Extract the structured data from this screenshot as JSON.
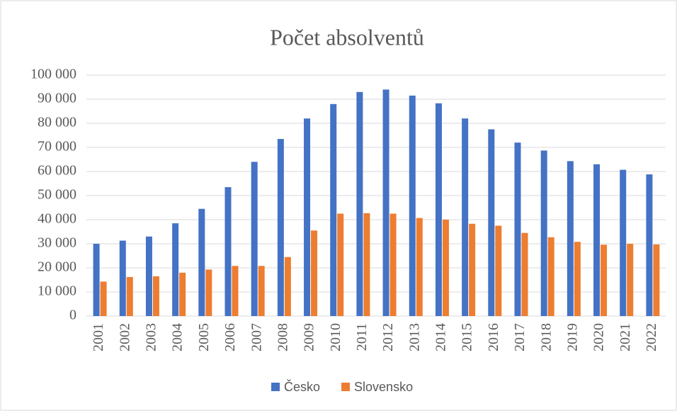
{
  "chart_data": {
    "type": "bar",
    "title": "Počet absolventů",
    "categories": [
      "2001",
      "2002",
      "2003",
      "2004",
      "2005",
      "2006",
      "2007",
      "2008",
      "2009",
      "2010",
      "2011",
      "2012",
      "2013",
      "2014",
      "2015",
      "2016",
      "2017",
      "2018",
      "2019",
      "2020",
      "2021",
      "2022"
    ],
    "series": [
      {
        "name": "Česko",
        "color": "#4472c4",
        "values": [
          30000,
          31300,
          33000,
          38500,
          44500,
          53500,
          64000,
          73500,
          82000,
          88000,
          93000,
          94000,
          91500,
          88300,
          82000,
          77500,
          72000,
          68700,
          64300,
          63000,
          60700,
          58800
        ]
      },
      {
        "name": "Slovensko",
        "color": "#ed7d31",
        "values": [
          14300,
          16200,
          16500,
          18000,
          19300,
          20800,
          20800,
          24500,
          35500,
          42500,
          42700,
          42500,
          40700,
          40000,
          38300,
          37500,
          34500,
          32700,
          30800,
          29600,
          30000,
          29700
        ]
      }
    ],
    "ylim": [
      0,
      100000
    ],
    "yticks": [
      0,
      {
        "value": 10000,
        "label": "10 000"
      },
      {
        "value": 20000,
        "label": "20 000"
      },
      {
        "value": 30000,
        "label": "30 000"
      },
      {
        "value": 40000,
        "label": "40 000"
      },
      {
        "value": 50000,
        "label": "50 000"
      },
      {
        "value": 60000,
        "label": "60 000"
      },
      {
        "value": 70000,
        "label": "70 000"
      },
      {
        "value": 80000,
        "label": "80 000"
      },
      {
        "value": 90000,
        "label": "90 000"
      },
      {
        "value": 100000,
        "label": "100 000"
      }
    ],
    "grid": true,
    "legend": "bottom"
  }
}
